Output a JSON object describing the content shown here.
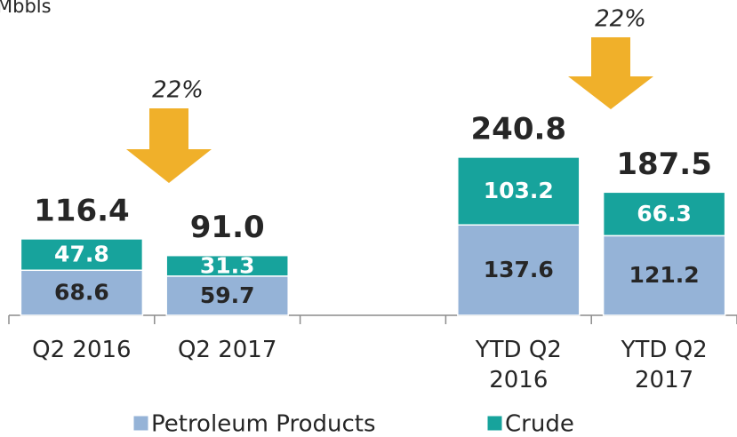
{
  "chart_data": {
    "type": "stacked_bar",
    "y_label": "Mbbls",
    "categories": [
      "Q2 2016",
      "Q2 2017",
      null,
      "YTD Q2 2016",
      "YTD Q2 2017"
    ],
    "series": [
      {
        "name": "Petroleum Products",
        "color": "#95b3d7",
        "values": [
          68.6,
          59.7,
          null,
          137.6,
          121.2
        ]
      },
      {
        "name": "Crude",
        "color": "#17a39c",
        "values": [
          47.8,
          31.3,
          null,
          103.2,
          66.3
        ]
      }
    ],
    "totals": {
      "values": [
        116.4,
        91,
        null,
        240.8,
        187.5
      ],
      "value_labels": [
        "116.4",
        "91.0",
        null,
        "240.8",
        "187.5"
      ]
    },
    "annotations": [
      "22%",
      "22%"
    ],
    "ylim": [
      0,
      480
    ],
    "legend": "bottom"
  }
}
